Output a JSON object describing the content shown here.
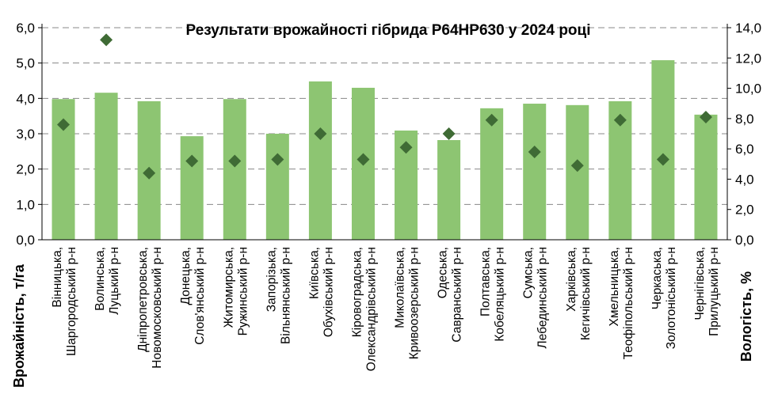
{
  "chart_data": {
    "type": "bar",
    "title": "Результати врожайності гібрида P64HP630 у 2024 році",
    "ylabel": "Врожайність, т/га",
    "y2label": "Вологість, %",
    "ylim": [
      0,
      6
    ],
    "y2lim": [
      0,
      14
    ],
    "yticks": [
      "0,0",
      "1,0",
      "2,0",
      "3,0",
      "4,0",
      "5,0",
      "6,0"
    ],
    "y2ticks": [
      "0,0",
      "2,0",
      "4,0",
      "6,0",
      "8,0",
      "10,0",
      "12,0",
      "14,0"
    ],
    "grid": true,
    "categories": [
      [
        "Вінницька,",
        "Шаргородський р-н"
      ],
      [
        "Волинська,",
        "Луцький р-н"
      ],
      [
        "Дніпропетровська,",
        "Новомосковський р-н"
      ],
      [
        "Донецька,",
        "Слов'янський р-н"
      ],
      [
        "Житомирська,",
        "Ружинський р-н"
      ],
      [
        "Запорізька,",
        "Вільнянський р-н"
      ],
      [
        "Київська,",
        "Обухівський р-н"
      ],
      [
        "Кіровоградська,",
        "Олександрівський р-н"
      ],
      [
        "Миколаївська,",
        "Кривоозерський р-н"
      ],
      [
        "Одеська,",
        "Савранський р-н"
      ],
      [
        "Полтавська,",
        "Кобеляцький р-н"
      ],
      [
        "Сумська,",
        "Лебединський р-н"
      ],
      [
        "Харківська,",
        "Кегичівський р-н"
      ],
      [
        "Хмельницька,",
        "Теофіпольський р-н"
      ],
      [
        "Черкаська,",
        "Золотоніський р-н"
      ],
      [
        "Чернігівська,",
        "Прилуцький р-н"
      ]
    ],
    "series": [
      {
        "type": "bar",
        "axis": "left",
        "color": "#8dc572",
        "values": [
          3.98,
          4.16,
          3.92,
          2.93,
          3.98,
          3.0,
          4.48,
          4.3,
          3.09,
          2.82,
          3.72,
          3.85,
          3.81,
          3.92,
          5.08,
          3.54
        ]
      },
      {
        "type": "scatter",
        "axis": "right",
        "marker": "diamond",
        "color": "#3f6b35",
        "values": [
          7.6,
          13.2,
          4.4,
          5.2,
          5.2,
          5.3,
          7.0,
          5.3,
          6.1,
          7.0,
          7.9,
          5.8,
          4.9,
          7.9,
          5.3,
          8.1
        ]
      }
    ]
  }
}
